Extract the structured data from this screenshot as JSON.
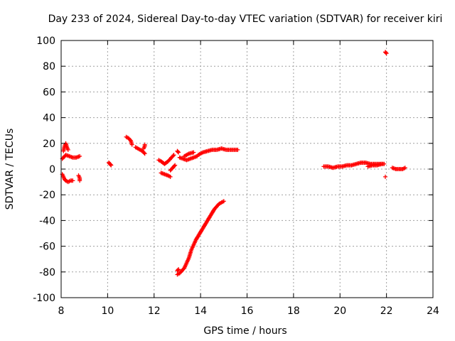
{
  "chart_data": {
    "type": "scatter",
    "title": "Day 233 of 2024, Sidereal Day-to-day VTEC variation (SDTVAR) for receiver kiri",
    "xlabel": "GPS time / hours",
    "ylabel": "SDTVAR / TECUs",
    "xlim": [
      8,
      24
    ],
    "ylim": [
      -100,
      100
    ],
    "grid": true,
    "marker": "+",
    "color": "#ff0000",
    "xticks": [
      8,
      10,
      12,
      14,
      16,
      18,
      20,
      22,
      24
    ],
    "xtick_labels": [
      "8",
      "10",
      "12",
      "14",
      "16",
      "18",
      "20",
      "22",
      "24"
    ],
    "yticks": [
      -100,
      -80,
      -60,
      -40,
      -20,
      0,
      20,
      40,
      60,
      80,
      100
    ],
    "ytick_labels": [
      "-100",
      "-80",
      "-60",
      "-40",
      "-20",
      "0",
      "20",
      "40",
      "60",
      "80",
      "100"
    ],
    "segments": [
      {
        "x": [
          8.1,
          8.15,
          8.2,
          8.25,
          8.3
        ],
        "y": [
          14,
          18,
          20,
          17,
          15
        ]
      },
      {
        "x": [
          8.05,
          8.2,
          8.35,
          8.5,
          8.65,
          8.8
        ],
        "y": [
          8,
          11,
          10,
          9,
          9,
          10
        ]
      },
      {
        "x": [
          8.05,
          8.1,
          8.15,
          8.2,
          8.3,
          8.4,
          8.5
        ],
        "y": [
          -4,
          -6,
          -8,
          -9,
          -10,
          -9,
          -9
        ]
      },
      {
        "x": [
          8.75,
          8.8,
          8.8
        ],
        "y": [
          -5,
          -7,
          -9
        ]
      },
      {
        "x": [
          10.05,
          10.1,
          10.15
        ],
        "y": [
          5,
          4,
          3
        ]
      },
      {
        "x": [
          10.8,
          10.9,
          11.0,
          11.05
        ],
        "y": [
          25,
          24,
          22,
          19
        ]
      },
      {
        "x": [
          11.2,
          11.3,
          11.4,
          11.5,
          11.6
        ],
        "y": [
          17,
          16,
          15,
          14,
          12
        ]
      },
      {
        "x": [
          11.55,
          11.6,
          11.6
        ],
        "y": [
          16,
          18,
          19
        ]
      },
      {
        "x": [
          12.2,
          12.3,
          12.45,
          12.6,
          12.75,
          12.85
        ],
        "y": [
          7,
          6,
          4,
          6,
          9,
          11
        ]
      },
      {
        "x": [
          12.3,
          12.45,
          12.6,
          12.7
        ],
        "y": [
          -3,
          -4,
          -5,
          -6
        ]
      },
      {
        "x": [
          12.7,
          12.8,
          12.9
        ],
        "y": [
          -1,
          1,
          3
        ]
      },
      {
        "x": [
          13.0,
          13.05
        ],
        "y": [
          14,
          13
        ]
      },
      {
        "x": [
          13.1,
          13.25,
          13.4,
          13.55,
          13.7,
          13.85
        ],
        "y": [
          9,
          8,
          7,
          8,
          9,
          10
        ]
      },
      {
        "x": [
          13.3,
          13.5,
          13.7
        ],
        "y": [
          10,
          12,
          13
        ]
      },
      {
        "x": [
          13.9,
          14.1,
          14.3,
          14.5,
          14.7,
          14.9,
          15.1,
          15.3,
          15.5,
          15.6
        ],
        "y": [
          11,
          13,
          14,
          15,
          15,
          16,
          15,
          15,
          15,
          15
        ]
      },
      {
        "x": [
          13.0,
          13.1,
          13.2,
          13.3,
          13.4,
          13.5,
          13.6,
          13.7,
          13.8,
          13.9,
          14.0,
          14.1,
          14.2,
          14.3,
          14.4,
          14.5,
          14.6,
          14.7,
          14.8,
          14.9,
          15.0
        ],
        "y": [
          -82,
          -81,
          -79,
          -77,
          -73,
          -69,
          -63,
          -59,
          -55,
          -52,
          -49,
          -46,
          -43,
          -40,
          -37,
          -34,
          -31,
          -29,
          -27,
          -26,
          -25
        ]
      },
      {
        "x": [
          13.0,
          13.05
        ],
        "y": [
          -79,
          -78
        ]
      },
      {
        "x": [
          19.3,
          19.5,
          19.7,
          19.9,
          20.1,
          20.3,
          20.5,
          20.7,
          20.9,
          21.1,
          21.3,
          21.5,
          21.7,
          21.9
        ],
        "y": [
          2,
          2,
          1,
          2,
          2,
          3,
          3,
          4,
          5,
          5,
          4,
          4,
          4,
          4
        ]
      },
      {
        "x": [
          21.2,
          21.4,
          21.6,
          21.8
        ],
        "y": [
          2,
          3,
          3,
          4
        ]
      },
      {
        "x": [
          21.95
        ],
        "y": [
          -6
        ]
      },
      {
        "x": [
          21.95,
          22.0
        ],
        "y": [
          91,
          90
        ]
      },
      {
        "x": [
          22.25,
          22.4,
          22.55,
          22.7,
          22.8
        ],
        "y": [
          1,
          0,
          0,
          0,
          1
        ]
      }
    ]
  }
}
